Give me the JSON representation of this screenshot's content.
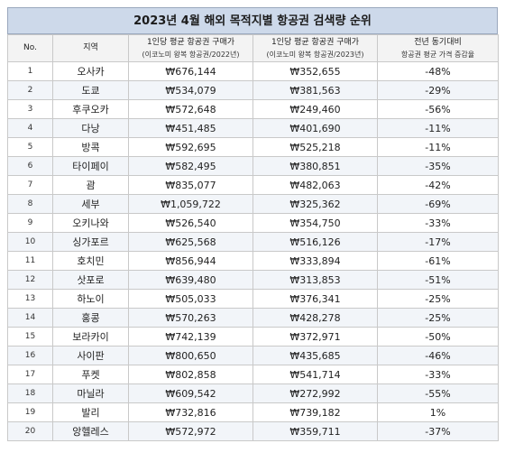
{
  "title": "2023년 4월 해외 목적지별 항공권 검색량 순위",
  "headers": {
    "no": "No.",
    "region": "지역",
    "price2022_line1": "1인당 평균 항공권 구매가",
    "price2022_line2": "(이코노미 왕복 항공권/2022년)",
    "price2023_line1": "1인당 평균 항공권 구매가",
    "price2023_line2": "(이코노미 왕복 항공권/2023년)",
    "change_line1": "전년 동기대비",
    "change_line2": "항공권 평균 가격 증감율"
  },
  "rows": [
    {
      "no": "1",
      "region": "오사카",
      "p2022": "₩676,144",
      "p2023": "₩352,655",
      "change": "-48%"
    },
    {
      "no": "2",
      "region": "도쿄",
      "p2022": "₩534,079",
      "p2023": "₩381,563",
      "change": "-29%"
    },
    {
      "no": "3",
      "region": "후쿠오카",
      "p2022": "₩572,648",
      "p2023": "₩249,460",
      "change": "-56%"
    },
    {
      "no": "4",
      "region": "다낭",
      "p2022": "₩451,485",
      "p2023": "₩401,690",
      "change": "-11%"
    },
    {
      "no": "5",
      "region": "방콕",
      "p2022": "₩592,695",
      "p2023": "₩525,218",
      "change": "-11%"
    },
    {
      "no": "6",
      "region": "타이페이",
      "p2022": "₩582,495",
      "p2023": "₩380,851",
      "change": "-35%"
    },
    {
      "no": "7",
      "region": "괌",
      "p2022": "₩835,077",
      "p2023": "₩482,063",
      "change": "-42%"
    },
    {
      "no": "8",
      "region": "세부",
      "p2022": "₩1,059,722",
      "p2023": "₩325,362",
      "change": "-69%"
    },
    {
      "no": "9",
      "region": "오키나와",
      "p2022": "₩526,540",
      "p2023": "₩354,750",
      "change": "-33%"
    },
    {
      "no": "10",
      "region": "싱가포르",
      "p2022": "₩625,568",
      "p2023": "₩516,126",
      "change": "-17%"
    },
    {
      "no": "11",
      "region": "호치민",
      "p2022": "₩856,944",
      "p2023": "₩333,894",
      "change": "-61%"
    },
    {
      "no": "12",
      "region": "삿포로",
      "p2022": "₩639,480",
      "p2023": "₩313,853",
      "change": "-51%"
    },
    {
      "no": "13",
      "region": "하노이",
      "p2022": "₩505,033",
      "p2023": "₩376,341",
      "change": "-25%"
    },
    {
      "no": "14",
      "region": "홍콩",
      "p2022": "₩570,263",
      "p2023": "₩428,278",
      "change": "-25%"
    },
    {
      "no": "15",
      "region": "보라카이",
      "p2022": "₩742,139",
      "p2023": "₩372,971",
      "change": "-50%"
    },
    {
      "no": "16",
      "region": "사이판",
      "p2022": "₩800,650",
      "p2023": "₩435,685",
      "change": "-46%"
    },
    {
      "no": "17",
      "region": "푸켓",
      "p2022": "₩802,858",
      "p2023": "₩541,714",
      "change": "-33%"
    },
    {
      "no": "18",
      "region": "마닐라",
      "p2022": "₩609,542",
      "p2023": "₩272,992",
      "change": "-55%"
    },
    {
      "no": "19",
      "region": "발리",
      "p2022": "₩732,816",
      "p2023": "₩739,182",
      "change": "1%"
    },
    {
      "no": "20",
      "region": "앙헬레스",
      "p2022": "₩572,972",
      "p2023": "₩359,711",
      "change": "-37%"
    }
  ]
}
